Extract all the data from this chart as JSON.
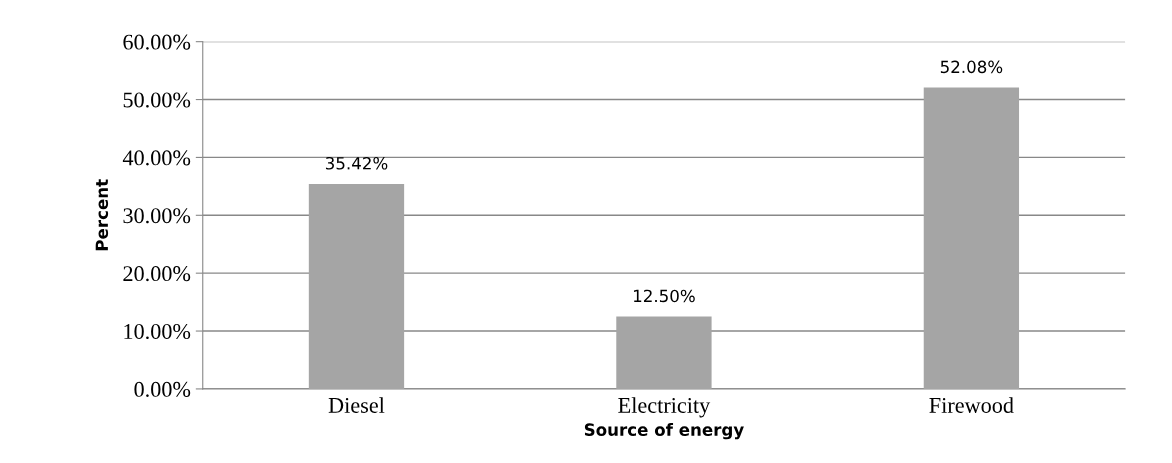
{
  "chart_data": {
    "type": "bar",
    "xlabel": "Source of energy",
    "ylabel": "Percent",
    "categories": [
      "Diesel",
      "Electricity",
      "Firewood"
    ],
    "values": [
      35.42,
      12.5,
      52.08
    ],
    "value_labels": [
      "35.42%",
      "12.50%",
      "52.08%"
    ],
    "color": "#a5a5a5",
    "ylim": [
      0,
      60
    ],
    "yticks": [
      {
        "value": 0,
        "label": "0.00%"
      },
      {
        "value": 10,
        "label": "10.00%"
      },
      {
        "value": 20,
        "label": "20.00%"
      },
      {
        "value": 30,
        "label": "30.00%"
      },
      {
        "value": 40,
        "label": "40.00%"
      },
      {
        "value": 50,
        "label": "50.00%"
      },
      {
        "value": 60,
        "label": "60.00%"
      }
    ],
    "grid": "y"
  }
}
